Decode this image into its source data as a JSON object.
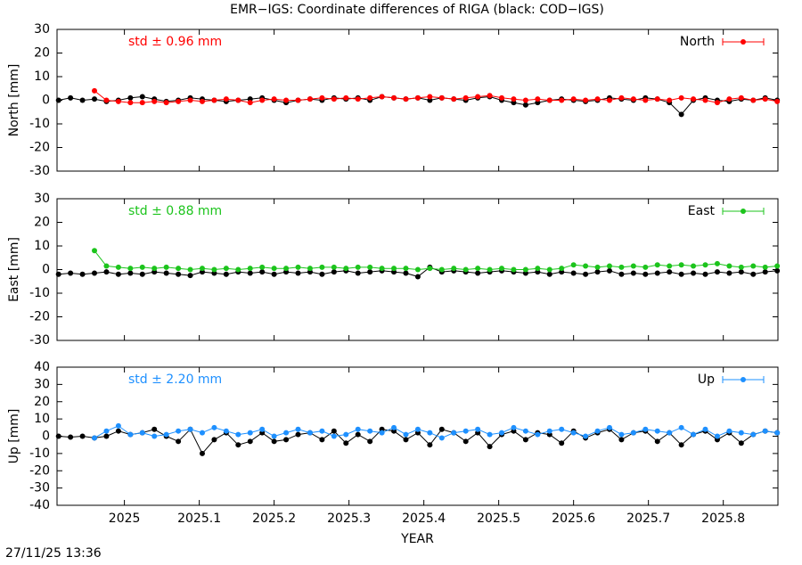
{
  "title": "EMR−IGS: Coordinate differences of RIGA (black: COD−IGS)",
  "timestamp": "27/11/25 13:36",
  "chart_data": [
    {
      "type": "line",
      "ylabel": "North [mm]",
      "annotation": "std ± 0.96 mm",
      "ylim": [
        -30,
        30
      ],
      "yticks": [
        -30,
        -20,
        -10,
        0,
        10,
        20,
        30
      ],
      "x": [
        2024.912,
        2024.928,
        2024.944,
        2024.96,
        2024.976,
        2024.992,
        2025.008,
        2025.024,
        2025.04,
        2025.056,
        2025.072,
        2025.088,
        2025.104,
        2025.12,
        2025.136,
        2025.152,
        2025.168,
        2025.184,
        2025.2,
        2025.216,
        2025.232,
        2025.248,
        2025.264,
        2025.28,
        2025.296,
        2025.312,
        2025.328,
        2025.344,
        2025.36,
        2025.376,
        2025.392,
        2025.408,
        2025.424,
        2025.44,
        2025.456,
        2025.472,
        2025.488,
        2025.504,
        2025.52,
        2025.536,
        2025.552,
        2025.568,
        2025.584,
        2025.6,
        2025.616,
        2025.632,
        2025.648,
        2025.664,
        2025.68,
        2025.696,
        2025.712,
        2025.728,
        2025.744,
        2025.76,
        2025.776,
        2025.792,
        2025.808,
        2025.824,
        2025.84,
        2025.856,
        2025.872
      ],
      "series": [
        {
          "color": "#000000",
          "values": [
            0,
            1,
            0,
            0.5,
            -0.5,
            0,
            1,
            1.5,
            0.5,
            -0.5,
            0,
            1,
            0.5,
            0,
            -0.5,
            0,
            0.5,
            1,
            0,
            -1,
            0,
            0.5,
            0,
            1,
            0.5,
            1,
            0,
            1.5,
            1,
            0.5,
            1,
            0,
            1,
            0.5,
            0,
            1,
            1.5,
            0,
            -1,
            -2,
            -1,
            0,
            0.5,
            0,
            -0.5,
            0,
            1,
            0.5,
            0,
            1,
            0.5,
            -1,
            -6,
            0,
            1,
            0,
            -0.5,
            0.5,
            0,
            1,
            0
          ]
        },
        {
          "name": "North",
          "color": "#ff0000",
          "values": [
            null,
            null,
            null,
            4,
            0,
            -0.5,
            -1,
            -1,
            -0.5,
            -1,
            -0.5,
            0,
            -0.5,
            0,
            0.5,
            0,
            -1,
            0,
            0.5,
            0,
            0,
            0.5,
            1,
            0.5,
            1,
            0.5,
            1,
            1.5,
            1,
            0.5,
            1,
            1.5,
            1,
            0.5,
            1,
            1.5,
            2,
            1,
            0.5,
            0,
            0.5,
            0,
            0,
            0.5,
            0,
            0.5,
            0,
            1,
            0.5,
            0,
            0.5,
            0,
            1,
            0.5,
            0,
            -1,
            0.5,
            1,
            0,
            0.5,
            -0.5
          ]
        }
      ]
    },
    {
      "type": "line",
      "ylabel": "East [mm]",
      "annotation": "std ± 0.88 mm",
      "ylim": [
        -30,
        30
      ],
      "yticks": [
        -30,
        -20,
        -10,
        0,
        10,
        20,
        30
      ],
      "x": [
        2024.912,
        2024.928,
        2024.944,
        2024.96,
        2024.976,
        2024.992,
        2025.008,
        2025.024,
        2025.04,
        2025.056,
        2025.072,
        2025.088,
        2025.104,
        2025.12,
        2025.136,
        2025.152,
        2025.168,
        2025.184,
        2025.2,
        2025.216,
        2025.232,
        2025.248,
        2025.264,
        2025.28,
        2025.296,
        2025.312,
        2025.328,
        2025.344,
        2025.36,
        2025.376,
        2025.392,
        2025.408,
        2025.424,
        2025.44,
        2025.456,
        2025.472,
        2025.488,
        2025.504,
        2025.52,
        2025.536,
        2025.552,
        2025.568,
        2025.584,
        2025.6,
        2025.616,
        2025.632,
        2025.648,
        2025.664,
        2025.68,
        2025.696,
        2025.712,
        2025.728,
        2025.744,
        2025.76,
        2025.776,
        2025.792,
        2025.808,
        2025.824,
        2025.84,
        2025.856,
        2025.872
      ],
      "series": [
        {
          "color": "#000000",
          "values": [
            -2,
            -1.5,
            -2,
            -1.5,
            -1,
            -2,
            -1.5,
            -2,
            -1,
            -1.5,
            -2,
            -2.5,
            -1,
            -1.5,
            -2,
            -1,
            -1.5,
            -1,
            -2,
            -1,
            -1.5,
            -1,
            -2,
            -1,
            -0.5,
            -1.5,
            -1,
            -0.5,
            -1,
            -1.5,
            -3,
            1,
            -1,
            -0.5,
            -1,
            -1.5,
            -1,
            -0.5,
            -1,
            -1.5,
            -1,
            -2,
            -1,
            -1.5,
            -2,
            -1,
            -0.5,
            -2,
            -1.5,
            -2,
            -1.5,
            -1,
            -2,
            -1.5,
            -2,
            -1,
            -1.5,
            -1,
            -2,
            -1,
            -0.5
          ]
        },
        {
          "name": "East",
          "color": "#1cc41c",
          "values": [
            null,
            null,
            null,
            8,
            1.5,
            1,
            0.5,
            1,
            0.5,
            1,
            0.5,
            0,
            0.5,
            0,
            0.5,
            0,
            0.5,
            1,
            0.5,
            0.5,
            1,
            0.5,
            1,
            1,
            0.5,
            1,
            1,
            0.5,
            0.5,
            0.5,
            0,
            0.5,
            0,
            0.5,
            0,
            0.5,
            0,
            0.5,
            0,
            0,
            0.5,
            0,
            0.5,
            2,
            1.5,
            1,
            1.5,
            1,
            1.5,
            1,
            2,
            1.5,
            2,
            1.5,
            2,
            2.5,
            1.5,
            1,
            1.5,
            1,
            1.5
          ]
        }
      ]
    },
    {
      "type": "line",
      "ylabel": "Up [mm]",
      "annotation": "std ± 2.20 mm",
      "xlabel": "YEAR",
      "xlim": [
        2024.91,
        2025.873
      ],
      "xticks": [
        2025,
        2025.1,
        2025.2,
        2025.3,
        2025.4,
        2025.5,
        2025.6,
        2025.7,
        2025.8
      ],
      "ylim": [
        -40,
        40
      ],
      "yticks": [
        -40,
        -30,
        -20,
        -10,
        0,
        10,
        20,
        30,
        40
      ],
      "x": [
        2024.912,
        2024.928,
        2024.944,
        2024.96,
        2024.976,
        2024.992,
        2025.008,
        2025.024,
        2025.04,
        2025.056,
        2025.072,
        2025.088,
        2025.104,
        2025.12,
        2025.136,
        2025.152,
        2025.168,
        2025.184,
        2025.2,
        2025.216,
        2025.232,
        2025.248,
        2025.264,
        2025.28,
        2025.296,
        2025.312,
        2025.328,
        2025.344,
        2025.36,
        2025.376,
        2025.392,
        2025.408,
        2025.424,
        2025.44,
        2025.456,
        2025.472,
        2025.488,
        2025.504,
        2025.52,
        2025.536,
        2025.552,
        2025.568,
        2025.584,
        2025.6,
        2025.616,
        2025.632,
        2025.648,
        2025.664,
        2025.68,
        2025.696,
        2025.712,
        2025.728,
        2025.744,
        2025.76,
        2025.776,
        2025.792,
        2025.808,
        2025.824,
        2025.84,
        2025.856,
        2025.872
      ],
      "series": [
        {
          "color": "#000000",
          "values": [
            0,
            -0.5,
            0,
            -1,
            0,
            3,
            1,
            2,
            4,
            0,
            -3,
            4,
            -10,
            -2,
            2,
            -5,
            -3,
            2,
            -3,
            -2,
            1,
            2,
            -2,
            3,
            -4,
            1,
            -3,
            4,
            3,
            -2,
            2,
            -5,
            4,
            2,
            -3,
            2,
            -6,
            1,
            3,
            -2,
            2,
            1,
            -4,
            3,
            -1,
            2,
            4,
            -2,
            2,
            3,
            -3,
            2,
            -5,
            1,
            3,
            -2,
            2,
            -4,
            1,
            3,
            2
          ]
        },
        {
          "name": "Up",
          "color": "#1e90ff",
          "values": [
            null,
            null,
            null,
            -1,
            3,
            6,
            1,
            2,
            0,
            1,
            3,
            4,
            2,
            5,
            3,
            1,
            2,
            4,
            0,
            2,
            4,
            2,
            3,
            0,
            1,
            4,
            3,
            2,
            5,
            1,
            4,
            2,
            -1,
            2,
            3,
            4,
            1,
            2,
            5,
            3,
            1,
            3,
            4,
            2,
            0,
            3,
            5,
            1,
            2,
            4,
            3,
            2,
            5,
            1,
            4,
            0,
            3,
            2,
            1,
            3,
            2
          ]
        }
      ]
    }
  ]
}
